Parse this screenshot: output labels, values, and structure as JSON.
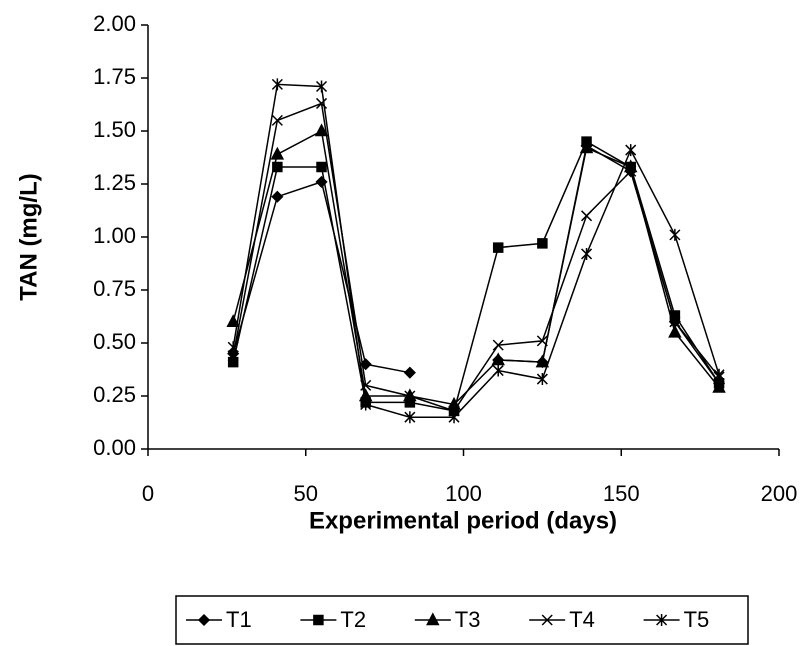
{
  "chart_data": {
    "type": "line",
    "x_label": "Experimental period (days)",
    "y_label": "TAN (mg/L)",
    "x": [
      27,
      41,
      55,
      69,
      83,
      97,
      111,
      125,
      139,
      153,
      167,
      181
    ],
    "series": [
      {
        "name": "T1",
        "color": "#000000",
        "marker": "diamond",
        "values": [
          0.45,
          1.19,
          1.26,
          0.4,
          0.36,
          null,
          0.42,
          0.41,
          1.43,
          1.31,
          0.6,
          0.31
        ]
      },
      {
        "name": "T2",
        "color": "#000000",
        "marker": "square",
        "values": [
          0.41,
          1.33,
          1.33,
          0.22,
          0.22,
          0.18,
          0.95,
          0.97,
          1.45,
          1.33,
          0.63,
          0.31
        ]
      },
      {
        "name": "T3",
        "color": "#000000",
        "marker": "triangle",
        "values": [
          0.6,
          1.39,
          1.5,
          0.25,
          0.25,
          0.21,
          0.42,
          0.41,
          1.42,
          1.33,
          0.55,
          0.29
        ]
      },
      {
        "name": "T4",
        "color": "#000000",
        "marker": "x",
        "values": [
          0.44,
          1.55,
          1.63,
          0.3,
          0.25,
          0.18,
          0.49,
          0.51,
          1.1,
          1.31,
          0.6,
          0.34
        ]
      },
      {
        "name": "T5",
        "color": "#000000",
        "marker": "star",
        "values": [
          0.48,
          1.72,
          1.71,
          0.21,
          0.15,
          0.15,
          0.37,
          0.33,
          0.92,
          1.41,
          1.01,
          0.35
        ]
      }
    ],
    "xlim": [
      0,
      200
    ],
    "xticks": [
      0,
      50,
      100,
      150,
      200
    ],
    "ylim": [
      0,
      2
    ],
    "yticks": [
      {
        "value": 0,
        "label": "0.00"
      },
      {
        "value": 0.25,
        "label": "0.25"
      },
      {
        "value": 0.5,
        "label": "0.50"
      },
      {
        "value": 0.75,
        "label": "0.75"
      },
      {
        "value": 1,
        "label": "1.00"
      },
      {
        "value": 1.25,
        "label": "1.25"
      },
      {
        "value": 1.5,
        "label": "1.50"
      },
      {
        "value": 1.75,
        "label": "1.75"
      },
      {
        "value": 2,
        "label": "2.00"
      }
    ],
    "grid": false,
    "legend": "bottom"
  }
}
